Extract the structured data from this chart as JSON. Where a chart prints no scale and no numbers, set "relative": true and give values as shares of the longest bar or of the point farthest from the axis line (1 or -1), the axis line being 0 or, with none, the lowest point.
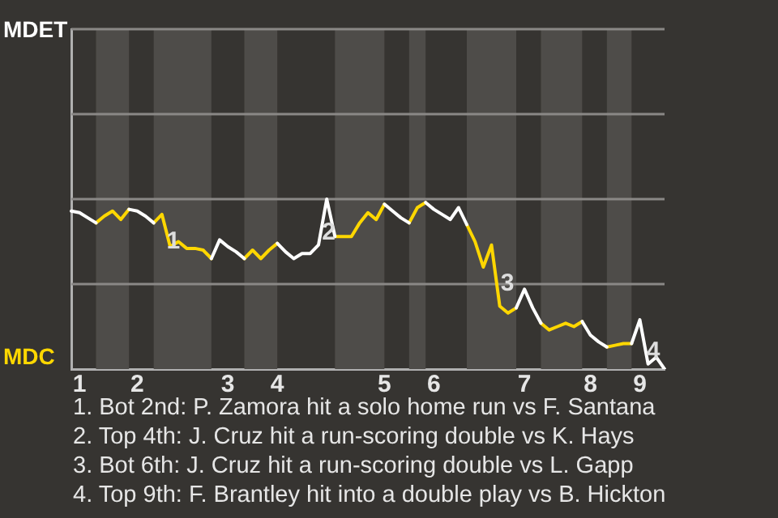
{
  "chart_data": {
    "type": "line",
    "relative": true,
    "categories": [
      null,
      "1",
      null,
      null,
      null,
      null,
      null,
      null,
      "2",
      null,
      null,
      null,
      null,
      null,
      null,
      null,
      null,
      null,
      null,
      "3",
      null,
      null,
      null,
      null,
      null,
      "4",
      null,
      null,
      null,
      null,
      null,
      null,
      null,
      null,
      null,
      null,
      null,
      null,
      "5",
      null,
      null,
      null,
      null,
      null,
      "6",
      null,
      null,
      null,
      null,
      null,
      null,
      null,
      null,
      null,
      null,
      "7",
      null,
      null,
      null,
      null,
      null,
      null,
      null,
      "8",
      null,
      null,
      null,
      null,
      null,
      "9",
      null,
      null,
      null
    ],
    "marker": "none",
    "line_style": "solid",
    "ref_lines": [
      {
        "axis": "y",
        "value": 0.5
      },
      {
        "axis": "y",
        "value": 1.0
      },
      {
        "axis": "y",
        "value": 1.5
      },
      {
        "axis": "y",
        "value": 2.0
      }
    ],
    "series": [
      {
        "name": "MDET",
        "color": "#ffffff",
        "values": [
          0.93,
          0.92,
          0.89,
          0.86,
          null,
          null,
          null,
          0.94,
          0.93,
          0.9,
          0.86,
          null,
          null,
          null,
          null,
          null,
          null,
          0.65,
          0.76,
          0.72,
          0.69,
          0.65,
          null,
          null,
          null,
          0.74,
          0.69,
          0.65,
          0.68,
          0.68,
          0.73,
          1,
          0.78,
          null,
          null,
          null,
          null,
          null,
          0.97,
          0.93,
          0.89,
          0.86,
          null,
          0.98,
          0.94,
          0.91,
          0.88,
          0.95,
          0.85,
          null,
          null,
          null,
          null,
          null,
          0.36,
          0.47,
          0.36,
          0.27,
          null,
          null,
          null,
          null,
          0.28,
          0.2,
          0.16,
          0.13,
          null,
          null,
          0.15,
          0.29,
          0.03,
          0.07,
          0
        ]
      },
      {
        "name": "MDC",
        "color": "#ffd700",
        "values": [
          null,
          null,
          null,
          0.86,
          0.9,
          0.93,
          0.88,
          0.94,
          null,
          null,
          0.86,
          0.91,
          0.72,
          0.75,
          0.71,
          0.71,
          0.7,
          0.65,
          null,
          null,
          null,
          0.65,
          0.7,
          0.65,
          0.7,
          0.74,
          null,
          null,
          null,
          null,
          null,
          null,
          0.78,
          0.78,
          0.78,
          0.86,
          0.92,
          0.88,
          0.97,
          null,
          null,
          0.86,
          0.95,
          0.98,
          null,
          null,
          null,
          null,
          0.85,
          0.75,
          0.6,
          0.73,
          0.37,
          0.33,
          0.36,
          null,
          null,
          0.27,
          0.23,
          0.25,
          0.27,
          0.25,
          0.28,
          null,
          null,
          0.13,
          0.14,
          0.15,
          0.15,
          null,
          null,
          null,
          null
        ]
      }
    ],
    "annotations": [
      {
        "text": "1",
        "y": 0.75
      },
      {
        "text": "2",
        "y": 0.8
      },
      {
        "text": "3",
        "y": 0.5
      },
      {
        "text": "4",
        "y": 0.1
      },
      "1. Bot 2nd: P. Zamora hit a solo home run vs F. Santana",
      "2. Top 4th: J. Cruz hit a run-scoring double vs K. Hays",
      "3. Bot 6th: J. Cruz hit a run-scoring double vs L. Gapp",
      "4. Top 9th: F. Brantley hit into a double play vs B. Hickton"
    ]
  }
}
